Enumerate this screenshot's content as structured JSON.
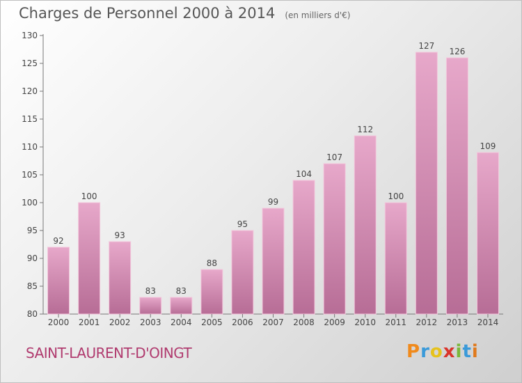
{
  "title": "Charges de Personnel 2000 à 2014",
  "unit": "(en milliers d'€)",
  "commune": "SAINT-LAURENT-D'OINGT",
  "logo": {
    "letters": [
      "P",
      "r",
      "o",
      "x",
      "i",
      "t",
      "i"
    ],
    "colors": [
      "#f08a1c",
      "#3a9ad9",
      "#e6c21c",
      "#d9342b",
      "#7bb83a",
      "#3a9ad9",
      "#e07a1c"
    ]
  },
  "colors": {
    "bar": "#d98ab2",
    "bar_stroke": "#f3c7dc",
    "text": "#555555",
    "commune": "#b03a6e"
  },
  "chart_data": {
    "type": "bar",
    "categories": [
      "2000",
      "2001",
      "2002",
      "2003",
      "2004",
      "2005",
      "2006",
      "2007",
      "2008",
      "2009",
      "2010",
      "2011",
      "2012",
      "2013",
      "2014"
    ],
    "values": [
      92,
      100,
      93,
      83,
      83,
      88,
      95,
      99,
      104,
      107,
      112,
      100,
      127,
      126,
      109
    ],
    "data_labels": [
      "92",
      "100",
      "93",
      "83",
      "83",
      "88",
      "95",
      "99",
      "104",
      "107",
      "112",
      "100",
      "127",
      "126",
      "109"
    ],
    "ylim": [
      80,
      130
    ],
    "yticks": [
      "80",
      "85",
      "90",
      "95",
      "100",
      "105",
      "110",
      "115",
      "120",
      "125",
      "130"
    ],
    "grid": false,
    "legend": "none"
  }
}
